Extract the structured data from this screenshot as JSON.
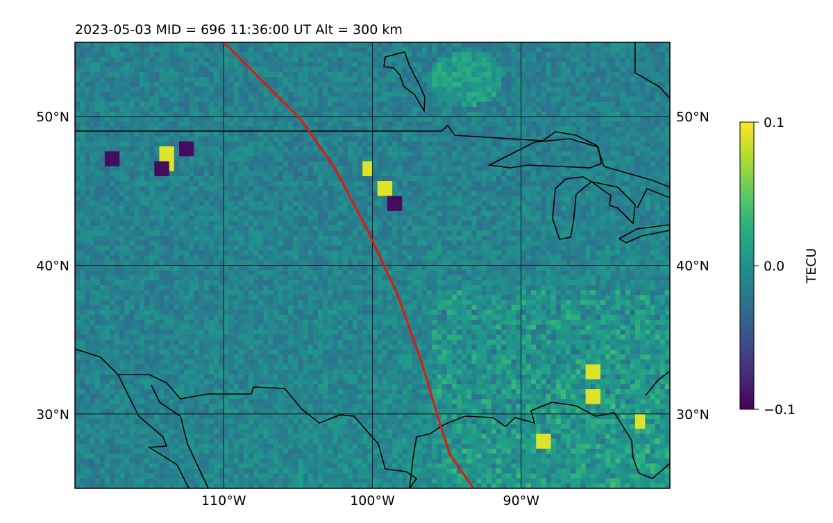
{
  "chart_data": {
    "type": "heatmap",
    "title": "2023-05-03  MID = 696    11:36:00  UT  Alt = 300 km",
    "projection": "map",
    "lon_range": [
      -120,
      -80
    ],
    "lat_range": [
      25,
      55
    ],
    "lon_ticks": [
      -110,
      -100,
      -90
    ],
    "lon_tick_labels": [
      "110°W",
      "100°W",
      "90°W"
    ],
    "lat_ticks": [
      30,
      40,
      50
    ],
    "lat_tick_labels": [
      "30°N",
      "40°N",
      "50°N"
    ],
    "grid": true,
    "colorbar": {
      "label": "TECU",
      "range": [
        -0.1,
        0.1
      ],
      "ticks": [
        0.1,
        0.0,
        -0.1
      ],
      "tick_labels": [
        "0.1",
        "0.0",
        "−0.1"
      ],
      "colormap": "viridis"
    },
    "track": {
      "color": "#e8150a",
      "points": [
        [
          -110.0,
          55.0
        ],
        [
          -107.5,
          52.5
        ],
        [
          -104.8,
          49.8
        ],
        [
          -102.5,
          46.5
        ],
        [
          -100.3,
          42.3
        ],
        [
          -98.3,
          38.0
        ],
        [
          -96.7,
          33.5
        ],
        [
          -95.5,
          29.5
        ],
        [
          -94.8,
          27.3
        ],
        [
          -93.2,
          25.0
        ]
      ]
    },
    "colors": {
      "background_mean": "#2a8a8a",
      "coastline": "#000000",
      "grid": "#000000"
    }
  }
}
